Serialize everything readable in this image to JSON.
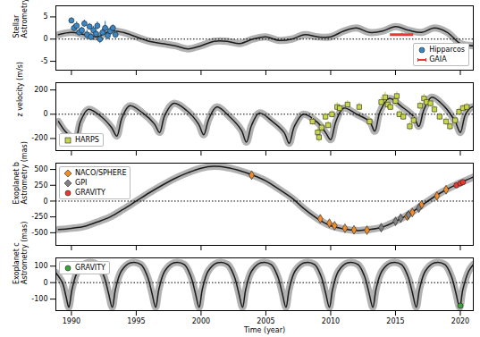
{
  "chart_data": [
    {
      "type": "line",
      "ylabel": "Stellar\nAstrometry (mas)",
      "xlim": [
        1988.8,
        2021
      ],
      "xticks": [
        1990,
        1995,
        2000,
        2005,
        2010,
        2015,
        2020
      ],
      "ylim": [
        -7,
        7.5
      ],
      "yticks": [
        -5,
        0,
        5
      ],
      "hline": 0,
      "legend": "lower right",
      "model": {
        "color": "#000000",
        "x": [
          1989,
          1990,
          1991,
          1992,
          1993,
          1994,
          1995,
          1996,
          1997,
          1998,
          1999,
          2000,
          2001,
          2002,
          2003,
          2004,
          2005,
          2006,
          2007,
          2008,
          2009,
          2010,
          2011,
          2012,
          2013,
          2014,
          2015,
          2016,
          2017,
          2018,
          2019,
          2020,
          2021
        ],
        "values": [
          1,
          1.5,
          1,
          0.5,
          1.8,
          1.5,
          0.5,
          -0.5,
          -1,
          -1.5,
          -2.2,
          -1.5,
          -0.5,
          -0.5,
          -1,
          0,
          0.5,
          -0.3,
          0,
          1,
          0.5,
          0.5,
          1.8,
          2.5,
          1.5,
          1.8,
          2.8,
          2,
          1.5,
          2.5,
          1.5,
          -1,
          -1.5
        ]
      },
      "series": [
        {
          "name": "Hipparcos",
          "color": "#3a87c4",
          "marker": "circle",
          "x": [
            1990.0,
            1990.2,
            1990.4,
            1990.6,
            1990.8,
            1991.0,
            1991.2,
            1991.4,
            1991.5,
            1991.7,
            1991.9,
            1992.0,
            1992.2,
            1992.4,
            1992.6,
            1992.8,
            1993.0,
            1993.2,
            1993.4
          ],
          "values": [
            4.2,
            2.5,
            3.0,
            1.5,
            2.0,
            3.5,
            1.0,
            2.8,
            0.5,
            2.0,
            1.2,
            3.0,
            0.0,
            1.5,
            2.5,
            0.8,
            1.8,
            2.5,
            1.0
          ],
          "errors": [
            0.6,
            0.8,
            0.9,
            0.8,
            0.7,
            0.8,
            1.0,
            0.7,
            0.8,
            0.9,
            0.7,
            0.9,
            1.0,
            0.8,
            1.5,
            0.9,
            0.8,
            0.7,
            0.8
          ]
        },
        {
          "name": "GAIA",
          "color": "#e8382f",
          "marker": "none",
          "x": [
            2015.5
          ],
          "values": [
            1.0
          ],
          "errors": [
            0.3
          ],
          "x_errors": [
            0.9
          ]
        }
      ]
    },
    {
      "type": "line",
      "ylabel": "z velocity (m/s)",
      "xlim": [
        1988.8,
        2021
      ],
      "xticks": [
        1990,
        1995,
        2000,
        2005,
        2010,
        2015,
        2020
      ],
      "ylim": [
        -300,
        260
      ],
      "yticks": [
        -200,
        0,
        200
      ],
      "hline": 0,
      "legend": "lower left",
      "model": {
        "color": "#000000",
        "x": [
          1989.0,
          1989.6,
          1990.3,
          1990.7,
          1991.3,
          1992.3,
          1993.1,
          1993.5,
          1993.9,
          1994.5,
          1995.5,
          1996.4,
          1996.8,
          1997.2,
          1997.9,
          1998.9,
          1999.8,
          2000.2,
          2000.6,
          2001.2,
          2002.2,
          2003.1,
          2003.5,
          2003.9,
          2004.5,
          2005.5,
          2006.4,
          2006.8,
          2007.2,
          2007.9,
          2008.9,
          2009.6,
          2010.0,
          2010.4,
          2011.0,
          2012.0,
          2013.0,
          2013.4,
          2013.8,
          2014.5,
          2015.5,
          2016.4,
          2016.8,
          2017.2,
          2017.8,
          2018.8,
          2019.6,
          2020.0,
          2020.4,
          2020.9,
          2021.0
        ],
        "values": [
          -60,
          -150,
          -200,
          -60,
          40,
          -20,
          -110,
          -180,
          -30,
          70,
          10,
          -80,
          -150,
          -10,
          90,
          30,
          -80,
          -170,
          -40,
          60,
          -20,
          -130,
          -230,
          -90,
          10,
          -60,
          -150,
          -240,
          -100,
          0,
          -60,
          -150,
          -210,
          -60,
          50,
          0,
          -60,
          -140,
          20,
          130,
          60,
          -20,
          -100,
          40,
          140,
          60,
          -60,
          -150,
          0,
          60,
          60
        ]
      },
      "series": [
        {
          "name": "HARPS",
          "color": "#c8d64a",
          "marker": "square",
          "x": [
            2008.6,
            2009.0,
            2009.1,
            2009.3,
            2009.6,
            2009.8,
            2010.1,
            2010.5,
            2010.7,
            2011.3,
            2012.2,
            2013.0,
            2013.9,
            2014.2,
            2014.4,
            2014.6,
            2015.0,
            2015.1,
            2015.3,
            2015.6,
            2016.1,
            2016.4,
            2016.9,
            2017.2,
            2017.4,
            2017.7,
            2018.0,
            2018.4,
            2018.9,
            2019.2,
            2019.6,
            2019.9,
            2020.2,
            2020.5
          ],
          "values": [
            -60,
            -150,
            -190,
            -110,
            -20,
            -90,
            0,
            60,
            50,
            80,
            60,
            -60,
            100,
            140,
            80,
            60,
            110,
            150,
            0,
            -20,
            -100,
            -50,
            70,
            130,
            100,
            90,
            40,
            -20,
            -60,
            -100,
            -50,
            20,
            50,
            60
          ],
          "errors": [
            30,
            35,
            40,
            30,
            30,
            30,
            30,
            35,
            30,
            30,
            30,
            35,
            40,
            40,
            35,
            30,
            40,
            35,
            30,
            30,
            35,
            30,
            30,
            35,
            30,
            30,
            30,
            30,
            30,
            35,
            30,
            30,
            30,
            30
          ]
        }
      ]
    },
    {
      "type": "line",
      "ylabel": "Exoplanet b\nAstrometry (mas)",
      "xlim": [
        1988.8,
        2021
      ],
      "xticks": [
        1990,
        1995,
        2000,
        2005,
        2010,
        2015,
        2020
      ],
      "ylim": [
        -700,
        600
      ],
      "yticks": [
        -500,
        -250,
        0,
        250,
        500
      ],
      "hline": 0,
      "legend": "upper left",
      "model": {
        "color": "#000000",
        "x": [
          1989,
          1990,
          1991,
          1992,
          1993,
          1994,
          1995,
          1996,
          1997,
          1998,
          1999,
          2000,
          2001,
          2002,
          2003,
          2004,
          2005,
          2006,
          2007,
          2008,
          2009,
          2010,
          2011,
          2012,
          2013,
          2014,
          2015,
          2016,
          2017,
          2018,
          2019,
          2020,
          2021
        ],
        "values": [
          -450,
          -430,
          -400,
          -330,
          -250,
          -130,
          0,
          130,
          250,
          360,
          450,
          520,
          550,
          530,
          480,
          410,
          320,
          190,
          50,
          -130,
          -280,
          -390,
          -440,
          -465,
          -450,
          -410,
          -320,
          -210,
          -70,
          70,
          190,
          290,
          380
        ]
      },
      "series": [
        {
          "name": "NACO/SPHERE",
          "color": "#f28c28",
          "marker": "diamond",
          "x": [
            2003.9,
            2009.2,
            2009.9,
            2010.3,
            2011.1,
            2011.8,
            2012.8,
            2015.9,
            2016.3,
            2017.0,
            2018.2,
            2018.9
          ],
          "values": [
            410,
            -280,
            -350,
            -390,
            -430,
            -455,
            -460,
            -240,
            -180,
            -60,
            80,
            180
          ]
        },
        {
          "name": "GPI",
          "color": "#808080",
          "marker": "diamond",
          "x": [
            2013.9,
            2015.0,
            2015.4,
            2016.0,
            2016.8
          ],
          "values": [
            -420,
            -320,
            -270,
            -220,
            -110
          ]
        },
        {
          "name": "GRAVITY",
          "color": "#e8382f",
          "marker": "circle",
          "x": [
            2019.7,
            2020.0,
            2020.2
          ],
          "values": [
            250,
            280,
            300
          ]
        }
      ]
    },
    {
      "type": "line",
      "ylabel": "Exoplanet c\nAstrometry (mas)",
      "xlabel": "Time (year)",
      "xlim": [
        1988.8,
        2021
      ],
      "xticks": [
        1990,
        1995,
        2000,
        2005,
        2010,
        2015,
        2020
      ],
      "ylim": [
        -170,
        150
      ],
      "yticks": [
        -100,
        0,
        100
      ],
      "hline": 0,
      "legend": "upper left",
      "model": {
        "color": "#000000",
        "x": [
          1988.8,
          1989.3,
          1989.6,
          1989.8,
          1990.05,
          1990.5,
          1991.2,
          1992.0,
          1992.5,
          1992.85,
          1993.15,
          1993.4,
          1993.85,
          1994.55,
          1995.35,
          1995.85,
          1996.2,
          1996.5,
          1996.75,
          1997.2,
          1997.9,
          1998.7,
          1999.2,
          1999.55,
          1999.85,
          2000.1,
          2000.55,
          2001.25,
          2002.05,
          2002.55,
          2002.9,
          2003.2,
          2003.45,
          2003.9,
          2004.6,
          2005.4,
          2005.9,
          2006.25,
          2006.55,
          2006.8,
          2007.25,
          2007.95,
          2008.75,
          2009.25,
          2009.6,
          2009.9,
          2010.15,
          2010.6,
          2011.3,
          2012.1,
          2012.6,
          2012.95,
          2013.25,
          2013.5,
          2013.95,
          2014.65,
          2015.45,
          2015.95,
          2016.3,
          2016.6,
          2016.85,
          2017.3,
          2018.0,
          2018.8,
          2019.3,
          2019.65,
          2019.95,
          2020.2,
          2020.65,
          2021.0
        ],
        "values": [
          60,
          0,
          -90,
          -150,
          -40,
          70,
          120,
          110,
          40,
          -60,
          -150,
          -40,
          70,
          120,
          110,
          40,
          -60,
          -150,
          -40,
          70,
          120,
          110,
          40,
          -60,
          -150,
          -40,
          70,
          120,
          110,
          40,
          -60,
          -150,
          -40,
          70,
          120,
          110,
          40,
          -60,
          -150,
          -40,
          70,
          120,
          110,
          40,
          -60,
          -150,
          -40,
          70,
          120,
          110,
          40,
          -60,
          -150,
          -40,
          70,
          120,
          110,
          40,
          -60,
          -150,
          -40,
          70,
          120,
          110,
          40,
          -60,
          -150,
          -40,
          70,
          110
        ]
      },
      "series": [
        {
          "name": "GRAVITY",
          "color": "#3aa63a",
          "marker": "circle",
          "x": [
            2020.0
          ],
          "values": [
            -140
          ],
          "errors": [
            8
          ]
        }
      ]
    }
  ]
}
